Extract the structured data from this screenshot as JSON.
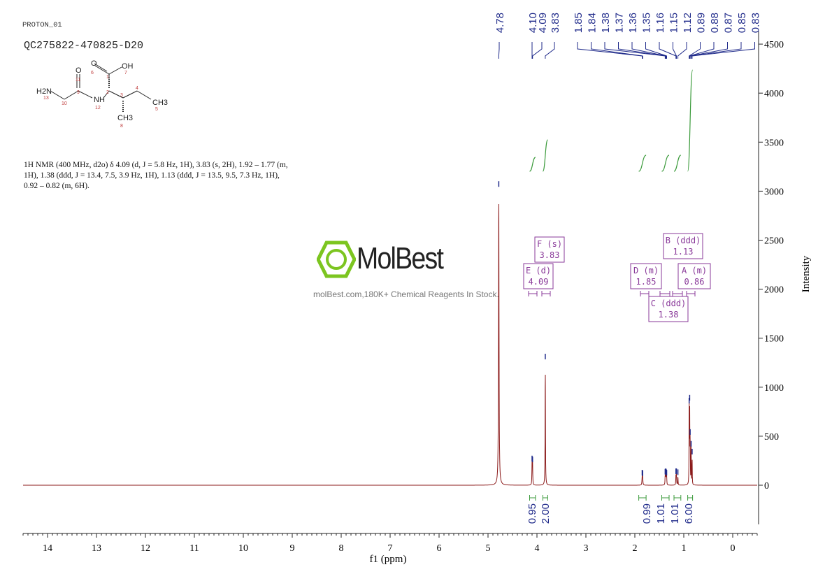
{
  "header": {
    "experiment": "PROTON_01",
    "sample_id": "QC275822-470825-D20"
  },
  "molecule_labels": {
    "oh": "OH",
    "o_acid": "O",
    "o_amide": "O",
    "nh2": "H2N",
    "nh": "NH",
    "ch3_a": "CH3",
    "ch3_b": "CH3",
    "atom_numbers": [
      "1",
      "2",
      "3",
      "4",
      "5",
      "6",
      "7",
      "8",
      "9",
      "10",
      "11",
      "12",
      "13"
    ]
  },
  "nmr_description": "1H NMR (400 MHz, d2o) δ 4.09 (d, J = 5.8 Hz, 1H), 3.83 (s, 2H), 1.92 – 1.77 (m, 1H), 1.38 (ddd, J = 13.4, 7.5, 3.9 Hz, 1H), 1.13 (ddd, J = 13.5, 9.5, 7.3 Hz, 1H), 0.92 – 0.82 (m, 6H).",
  "watermark": {
    "logo": "MolBest",
    "tagline": "molBest.com,180K+ Chemical Reagents In Stock."
  },
  "colors": {
    "spectrum": "#8b1a1a",
    "peak_label": "#1f2a8a",
    "integral": "#3a9a3a",
    "multiplet": "#8a3a9a",
    "logo_green": "#7cc520"
  },
  "chart_data": {
    "type": "line",
    "title": "",
    "xlabel": "f1 (ppm)",
    "ylabel": "Intensity",
    "xlim": [
      14.5,
      -0.5
    ],
    "ylim": [
      -500,
      4500
    ],
    "x_ticks": [
      14,
      13,
      12,
      11,
      10,
      9,
      8,
      7,
      6,
      5,
      4,
      3,
      2,
      1,
      0
    ],
    "y_ticks": [
      0,
      500,
      1000,
      1500,
      2000,
      2500,
      3000,
      3500,
      4000,
      4500
    ],
    "peaks": [
      {
        "ppm": 4.78,
        "height": 3030,
        "width": 0.006
      },
      {
        "ppm": 4.1,
        "height": 230,
        "width": 0.004
      },
      {
        "ppm": 4.09,
        "height": 220,
        "width": 0.004
      },
      {
        "ppm": 3.83,
        "height": 1270,
        "width": 0.004
      },
      {
        "ppm": 1.85,
        "height": 85,
        "width": 0.005
      },
      {
        "ppm": 1.84,
        "height": 80,
        "width": 0.005
      },
      {
        "ppm": 1.38,
        "height": 95,
        "width": 0.004
      },
      {
        "ppm": 1.37,
        "height": 100,
        "width": 0.004
      },
      {
        "ppm": 1.36,
        "height": 95,
        "width": 0.004
      },
      {
        "ppm": 1.35,
        "height": 85,
        "width": 0.004
      },
      {
        "ppm": 1.16,
        "height": 100,
        "width": 0.004
      },
      {
        "ppm": 1.15,
        "height": 100,
        "width": 0.004
      },
      {
        "ppm": 1.12,
        "height": 90,
        "width": 0.004
      },
      {
        "ppm": 0.89,
        "height": 820,
        "width": 0.003
      },
      {
        "ppm": 0.88,
        "height": 850,
        "width": 0.003
      },
      {
        "ppm": 0.87,
        "height": 500,
        "width": 0.003
      },
      {
        "ppm": 0.85,
        "height": 380,
        "width": 0.003
      },
      {
        "ppm": 0.83,
        "height": 300,
        "width": 0.003
      }
    ],
    "peak_labels": [
      "4.78",
      "4.10",
      "4.09",
      "3.83",
      "1.85",
      "1.84",
      "1.38",
      "1.37",
      "1.36",
      "1.35",
      "1.16",
      "1.15",
      "1.12",
      "0.89",
      "0.88",
      "0.87",
      "0.85",
      "0.83"
    ],
    "integrals": [
      {
        "from": 4.15,
        "to": 4.03,
        "value": "0.95"
      },
      {
        "from": 3.88,
        "to": 3.78,
        "value": "2.00"
      },
      {
        "from": 1.92,
        "to": 1.77,
        "value": "0.99"
      },
      {
        "from": 1.45,
        "to": 1.3,
        "value": "1.01"
      },
      {
        "from": 1.2,
        "to": 1.06,
        "value": "1.01"
      },
      {
        "from": 0.92,
        "to": 0.82,
        "value": "6.00"
      }
    ],
    "multiplets": [
      {
        "label": "F (s)",
        "shift": "3.83",
        "ppm": 3.83
      },
      {
        "label": "E (d)",
        "shift": "4.09",
        "ppm": 4.09
      },
      {
        "label": "D (m)",
        "shift": "1.85",
        "ppm": 1.85
      },
      {
        "label": "B (ddd)",
        "shift": "1.13",
        "ppm": 1.13
      },
      {
        "label": "A (m)",
        "shift": "0.86",
        "ppm": 0.86
      },
      {
        "label": "C (ddd)",
        "shift": "1.38",
        "ppm": 1.38
      }
    ]
  }
}
